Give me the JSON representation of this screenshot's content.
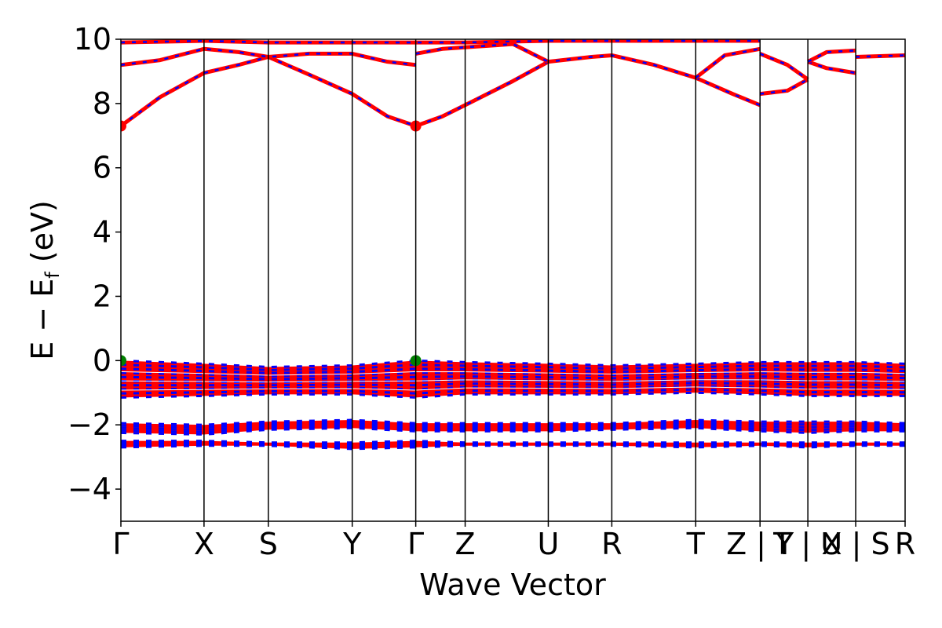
{
  "chart_data": {
    "type": "line",
    "title": "",
    "xlabel": "Wave Vector",
    "ylabel": "E − E",
    "ylabel_sub": "f",
    "ylabel_unit": " (eV)",
    "ylim": [
      -5,
      10
    ],
    "yticks": [
      -4,
      -2,
      0,
      2,
      4,
      6,
      8,
      10
    ],
    "ytick_labels": [
      "−4",
      "−2",
      "0",
      "2",
      "4",
      "6",
      "8",
      "10"
    ],
    "xlim": [
      0,
      1.0
    ],
    "kpoints": [
      {
        "label": "Γ",
        "x": 0.0
      },
      {
        "label": "X",
        "x": 0.106
      },
      {
        "label": "S",
        "x": 0.188
      },
      {
        "label": "Y",
        "x": 0.295
      },
      {
        "label": "Γ",
        "x": 0.376
      },
      {
        "label": "Z",
        "x": 0.439
      },
      {
        "label": "U",
        "x": 0.545
      },
      {
        "label": "R",
        "x": 0.626
      },
      {
        "label": "T",
        "x": 0.733
      },
      {
        "label": "Z | Y",
        "x": 0.815
      },
      {
        "label": "T | U",
        "x": 0.876
      },
      {
        "label": "X | S",
        "x": 0.937
      },
      {
        "label": "R",
        "x": 1.0
      }
    ],
    "series": [
      {
        "role": "conduction-band",
        "color": "#ff0000",
        "x": [
          0.0,
          0.05,
          0.106,
          0.15,
          0.188,
          0.24,
          0.295,
          0.34,
          0.376,
          0.41,
          0.439,
          0.5,
          0.545,
          0.6,
          0.626,
          0.68,
          0.733,
          0.78,
          0.815
        ],
        "y": [
          7.3,
          8.2,
          8.95,
          9.2,
          9.45,
          8.9,
          8.3,
          7.6,
          7.3,
          7.6,
          7.95,
          8.7,
          9.3,
          9.45,
          9.5,
          9.2,
          8.8,
          8.3,
          7.95
        ]
      },
      {
        "role": "conduction-band-2",
        "color": "#ff0000",
        "x": [
          0.0,
          0.05,
          0.106,
          0.15,
          0.188,
          0.24,
          0.295,
          0.34,
          0.376
        ],
        "y": [
          9.2,
          9.35,
          9.7,
          9.6,
          9.45,
          9.55,
          9.55,
          9.3,
          9.2
        ]
      },
      {
        "role": "conduction-band-3",
        "color": "#ff0000",
        "x": [
          0.0,
          0.106,
          0.188,
          0.295,
          0.376,
          0.439,
          0.545,
          0.626,
          0.733,
          0.815
        ],
        "y": [
          9.9,
          9.95,
          9.9,
          9.9,
          9.9,
          9.9,
          9.95,
          9.95,
          9.95,
          9.95
        ]
      },
      {
        "role": "conduction-band-4",
        "color": "#ff0000",
        "x": [
          0.376,
          0.41,
          0.439,
          0.5,
          0.545
        ],
        "y": [
          9.55,
          9.7,
          9.75,
          9.85,
          9.3
        ]
      },
      {
        "role": "conduction-band-5",
        "color": "#ff0000",
        "x": [
          0.733,
          0.77,
          0.815
        ],
        "y": [
          8.8,
          9.5,
          9.7
        ]
      },
      {
        "role": "conduction-band-6",
        "color": "#ff0000",
        "x": [
          0.815,
          0.85,
          0.876
        ],
        "y": [
          8.3,
          8.4,
          8.75
        ]
      },
      {
        "role": "conduction-band-7",
        "color": "#ff0000",
        "x": [
          0.815,
          0.85,
          0.876
        ],
        "y": [
          9.55,
          9.2,
          8.75
        ]
      },
      {
        "role": "conduction-band-8",
        "color": "#ff0000",
        "x": [
          0.876,
          0.9,
          0.937
        ],
        "y": [
          9.3,
          9.1,
          8.95
        ]
      },
      {
        "role": "conduction-band-9",
        "color": "#ff0000",
        "x": [
          0.876,
          0.9,
          0.937
        ],
        "y": [
          9.3,
          9.6,
          9.65
        ]
      },
      {
        "role": "conduction-band-10",
        "color": "#ff0000",
        "x": [
          0.937,
          1.0
        ],
        "y": [
          9.45,
          9.5
        ]
      }
    ],
    "valence_bands": [
      {
        "x": [
          0.0,
          0.106,
          0.188,
          0.295,
          0.376,
          0.439,
          0.545,
          0.626,
          0.733,
          0.815,
          0.876,
          0.937,
          1.0
        ],
        "top": [
          0.0,
          -0.1,
          -0.2,
          -0.15,
          0.0,
          -0.05,
          -0.1,
          -0.15,
          -0.1,
          -0.05,
          -0.05,
          -0.05,
          -0.1
        ],
        "bottom": [
          -1.15,
          -1.1,
          -1.05,
          -1.05,
          -1.15,
          -1.05,
          -1.05,
          -1.05,
          -1.0,
          -1.05,
          -1.1,
          -1.1,
          -1.1
        ]
      },
      {
        "x": [
          0.0,
          0.106,
          0.188,
          0.295,
          0.376,
          0.439,
          0.545,
          0.626,
          0.733,
          0.815,
          0.876,
          0.937,
          1.0
        ],
        "top": [
          -1.95,
          -2.0,
          -1.9,
          -1.85,
          -1.95,
          -1.95,
          -1.95,
          -1.95,
          -1.85,
          -1.9,
          -1.9,
          -1.9,
          -1.95
        ],
        "bottom": [
          -2.25,
          -2.3,
          -2.15,
          -2.1,
          -2.2,
          -2.2,
          -2.2,
          -2.15,
          -2.1,
          -2.2,
          -2.25,
          -2.2,
          -2.2
        ]
      },
      {
        "x": [
          0.0,
          0.106,
          0.188,
          0.295,
          0.376,
          0.439,
          0.545,
          0.626,
          0.733,
          0.815,
          0.876,
          0.937,
          1.0
        ],
        "top": [
          -2.5,
          -2.5,
          -2.55,
          -2.55,
          -2.5,
          -2.55,
          -2.55,
          -2.55,
          -2.55,
          -2.55,
          -2.55,
          -2.55,
          -2.55
        ],
        "bottom": [
          -2.7,
          -2.65,
          -2.65,
          -2.75,
          -2.7,
          -2.65,
          -2.65,
          -2.65,
          -2.7,
          -2.65,
          -2.7,
          -2.65,
          -2.65
        ]
      }
    ],
    "markers": [
      {
        "x": 0.0,
        "y": 7.3,
        "color": "#ff0000",
        "kind": "cbm"
      },
      {
        "x": 0.376,
        "y": 7.3,
        "color": "#ff0000",
        "kind": "cbm"
      },
      {
        "x": 0.0,
        "y": 0.0,
        "color": "#008000",
        "kind": "vbm"
      },
      {
        "x": 0.376,
        "y": 0.0,
        "color": "#008000",
        "kind": "vbm"
      }
    ],
    "grid": false,
    "legend": "none",
    "band_colors": {
      "spin_up": "#ff0000",
      "spin_down": "#0000ff"
    }
  }
}
